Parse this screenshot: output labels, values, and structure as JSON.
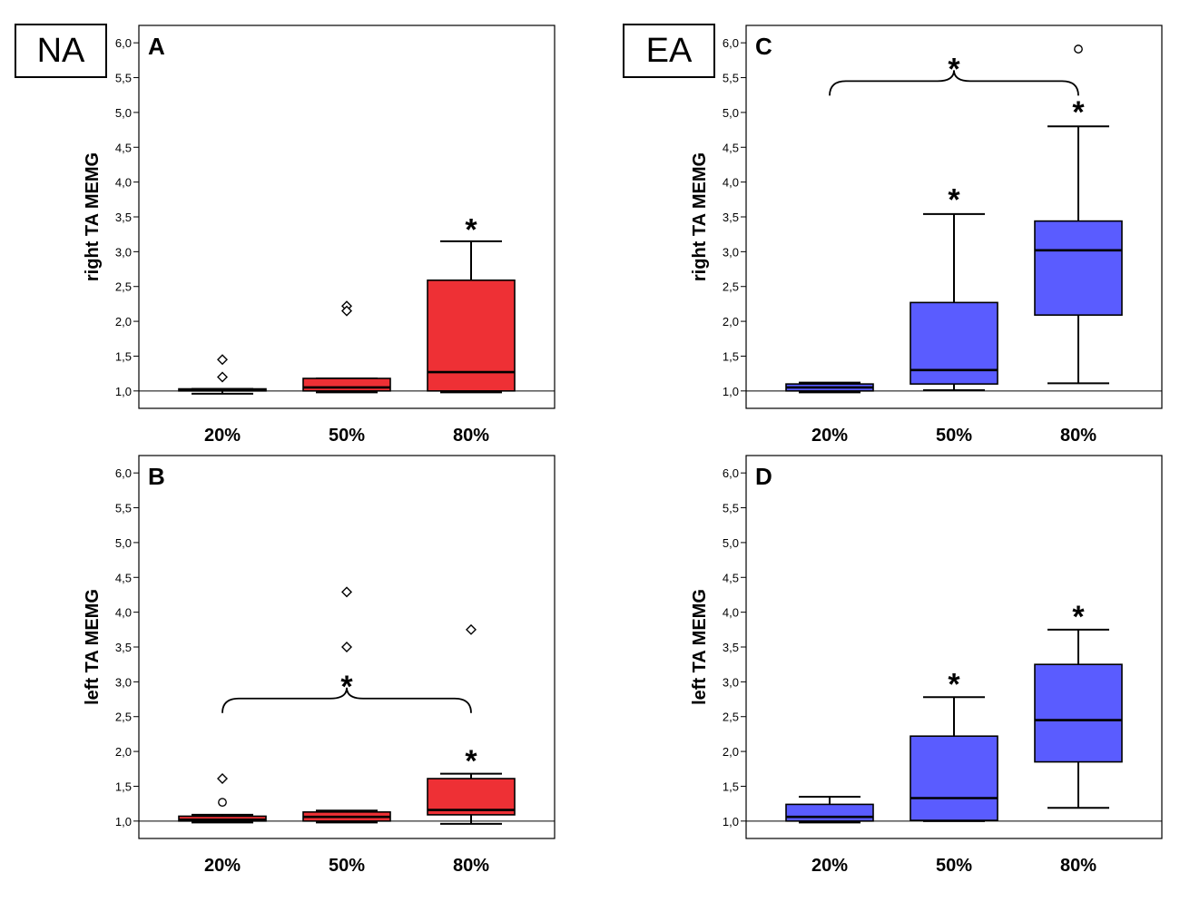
{
  "groups": {
    "left": "NA",
    "right": "EA"
  },
  "colors": {
    "na_fill": "#ee3035",
    "ea_fill": "#5a5cff",
    "stroke": "#000000"
  },
  "axis": {
    "ylim": [
      0.75,
      6.25
    ],
    "yticks": [
      1.0,
      1.5,
      2.0,
      2.5,
      3.0,
      3.5,
      4.0,
      4.5,
      5.0,
      5.5,
      6.0
    ],
    "ytick_labels": [
      "1,0",
      "1,5",
      "2,0",
      "2,5",
      "3,0",
      "3,5",
      "4,0",
      "4,5",
      "5,0",
      "5,5",
      "6,0"
    ],
    "reference_line": 1.0
  },
  "chart_data": [
    {
      "type": "box",
      "panel": "A",
      "group": "NA",
      "ylabel": "right TA MEMG",
      "categories": [
        "20%",
        "50%",
        "80%"
      ],
      "boxes": [
        {
          "q1": 1.0,
          "median": 1.02,
          "q3": 1.03,
          "whisker_low": 0.96,
          "whisker_high": 1.03
        },
        {
          "q1": 1.0,
          "median": 1.05,
          "q3": 1.18,
          "whisker_low": 0.98,
          "whisker_high": 1.18
        },
        {
          "q1": 1.0,
          "median": 1.27,
          "q3": 2.59,
          "whisker_low": 0.98,
          "whisker_high": 3.15
        }
      ],
      "outliers": [
        {
          "cat": 0,
          "value": 1.45,
          "marker": "diamond"
        },
        {
          "cat": 0,
          "value": 1.2,
          "marker": "diamond"
        },
        {
          "cat": 1,
          "value": 2.22,
          "marker": "diamond"
        },
        {
          "cat": 1,
          "value": 2.15,
          "marker": "diamond"
        }
      ],
      "significance": [
        {
          "cat": 2,
          "value": 3.4,
          "label": "*"
        }
      ],
      "brace": null
    },
    {
      "type": "box",
      "panel": "B",
      "group": "NA",
      "ylabel": "left TA MEMG",
      "categories": [
        "20%",
        "50%",
        "80%"
      ],
      "boxes": [
        {
          "q1": 1.0,
          "median": 1.02,
          "q3": 1.07,
          "whisker_low": 0.98,
          "whisker_high": 1.09
        },
        {
          "q1": 1.0,
          "median": 1.06,
          "q3": 1.13,
          "whisker_low": 0.98,
          "whisker_high": 1.15
        },
        {
          "q1": 1.09,
          "median": 1.16,
          "q3": 1.61,
          "whisker_low": 0.96,
          "whisker_high": 1.68
        }
      ],
      "outliers": [
        {
          "cat": 0,
          "value": 1.61,
          "marker": "diamond"
        },
        {
          "cat": 0,
          "value": 1.27,
          "marker": "circle"
        },
        {
          "cat": 1,
          "value": 4.29,
          "marker": "diamond"
        },
        {
          "cat": 1,
          "value": 3.5,
          "marker": "diamond"
        },
        {
          "cat": 2,
          "value": 3.75,
          "marker": "diamond"
        }
      ],
      "significance": [
        {
          "cat": 2,
          "value": 1.95,
          "label": "*"
        }
      ],
      "brace": {
        "from": 0,
        "to": 2,
        "value": 2.76,
        "label": "*"
      }
    },
    {
      "type": "box",
      "panel": "C",
      "group": "EA",
      "ylabel": "right TA MEMG",
      "categories": [
        "20%",
        "50%",
        "80%"
      ],
      "boxes": [
        {
          "q1": 1.0,
          "median": 1.05,
          "q3": 1.1,
          "whisker_low": 0.98,
          "whisker_high": 1.12
        },
        {
          "q1": 1.1,
          "median": 1.3,
          "q3": 2.27,
          "whisker_low": 1.01,
          "whisker_high": 3.54
        },
        {
          "q1": 2.09,
          "median": 3.02,
          "q3": 3.44,
          "whisker_low": 1.11,
          "whisker_high": 4.8
        }
      ],
      "outliers": [
        {
          "cat": 2,
          "value": 5.91,
          "marker": "circle"
        }
      ],
      "significance": [
        {
          "cat": 1,
          "value": 3.83,
          "label": "*"
        },
        {
          "cat": 2,
          "value": 5.09,
          "label": "*"
        }
      ],
      "brace": {
        "from": 0,
        "to": 2,
        "value": 5.45,
        "label": "*"
      }
    },
    {
      "type": "box",
      "panel": "D",
      "group": "EA",
      "ylabel": "left TA MEMG",
      "categories": [
        "20%",
        "50%",
        "80%"
      ],
      "boxes": [
        {
          "q1": 1.0,
          "median": 1.06,
          "q3": 1.24,
          "whisker_low": 0.98,
          "whisker_high": 1.35
        },
        {
          "q1": 1.01,
          "median": 1.33,
          "q3": 2.22,
          "whisker_low": 1.0,
          "whisker_high": 2.78
        },
        {
          "q1": 1.85,
          "median": 2.45,
          "q3": 3.25,
          "whisker_low": 1.19,
          "whisker_high": 3.75
        }
      ],
      "outliers": [],
      "significance": [
        {
          "cat": 1,
          "value": 3.05,
          "label": "*"
        },
        {
          "cat": 2,
          "value": 4.02,
          "label": "*"
        }
      ],
      "brace": null
    }
  ]
}
